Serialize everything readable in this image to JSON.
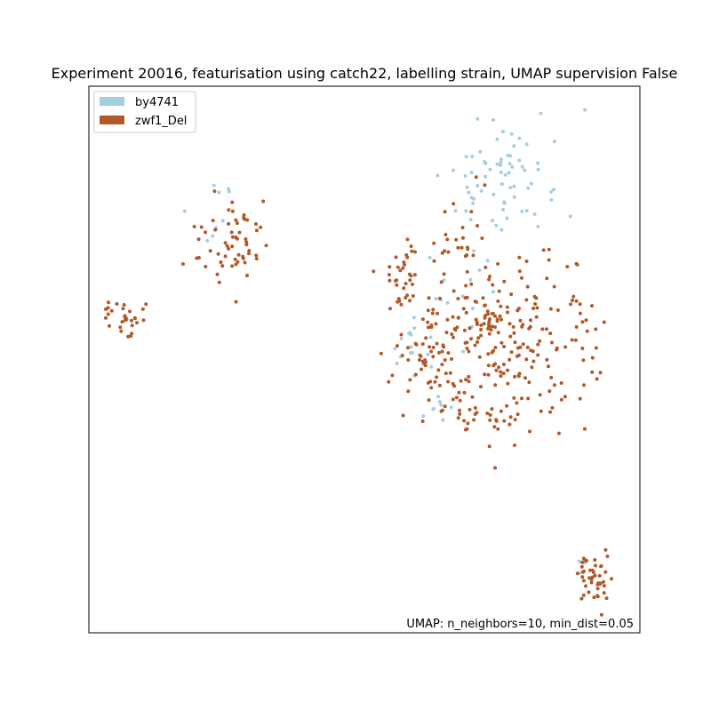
{
  "chart_data": {
    "type": "scatter",
    "title": "Experiment 20016, featurisation using catch22, labelling strain, UMAP supervision False",
    "annotation": "UMAP: n_neighbors=10, min_dist=0.05",
    "xlabel": "",
    "ylabel": "",
    "axis_ticks": "none",
    "xlim": [
      0,
      620
    ],
    "ylim": [
      0,
      615
    ],
    "legend_position": "top-left",
    "series": [
      {
        "name": "by4741",
        "color": "#a6cee3",
        "clusters": [
          {
            "cx": 145,
            "cy": 468,
            "sx": 12,
            "sy": 18,
            "n": 10
          },
          {
            "cx": 465,
            "cy": 510,
            "sx": 35,
            "sy": 35,
            "n": 70
          },
          {
            "cx": 428,
            "cy": 390,
            "sx": 25,
            "sy": 30,
            "n": 14
          },
          {
            "cx": 365,
            "cy": 315,
            "sx": 12,
            "sy": 25,
            "n": 18
          },
          {
            "cx": 392,
            "cy": 252,
            "sx": 8,
            "sy": 8,
            "n": 8
          },
          {
            "cx": 555,
            "cy": 78,
            "sx": 6,
            "sy": 6,
            "n": 3
          }
        ]
      },
      {
        "name": "zwf1_Del",
        "color": "#b15928",
        "clusters": [
          {
            "cx": 40,
            "cy": 357,
            "sx": 14,
            "sy": 10,
            "n": 30
          },
          {
            "cx": 160,
            "cy": 440,
            "sx": 18,
            "sy": 24,
            "n": 60
          },
          {
            "cx": 352,
            "cy": 405,
            "sx": 12,
            "sy": 22,
            "n": 30
          },
          {
            "cx": 415,
            "cy": 440,
            "sx": 20,
            "sy": 30,
            "n": 22
          },
          {
            "cx": 460,
            "cy": 330,
            "sx": 55,
            "sy": 45,
            "n": 260
          },
          {
            "cx": 445,
            "cy": 240,
            "sx": 25,
            "sy": 15,
            "n": 20
          },
          {
            "cx": 380,
            "cy": 310,
            "sx": 20,
            "sy": 30,
            "n": 40
          },
          {
            "cx": 570,
            "cy": 60,
            "sx": 12,
            "sy": 20,
            "n": 45
          }
        ]
      }
    ]
  }
}
